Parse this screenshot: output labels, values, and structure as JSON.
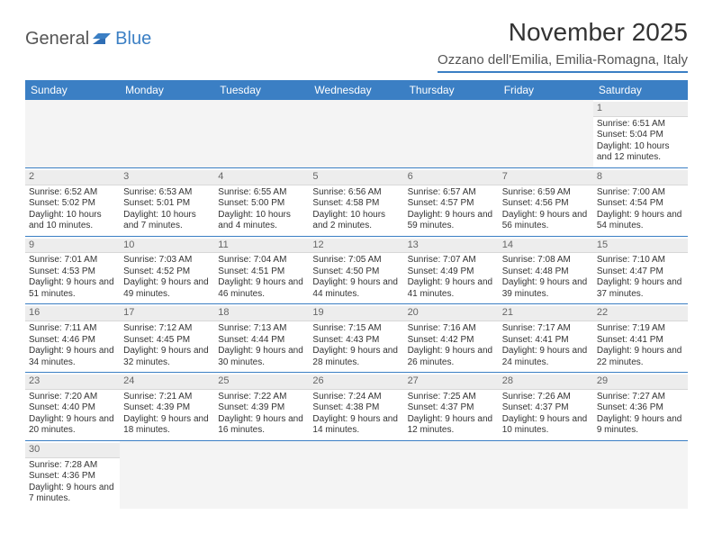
{
  "logo": {
    "general": "General",
    "blue": "Blue"
  },
  "title": "November 2025",
  "location": "Ozzano dell'Emilia, Emilia-Romagna, Italy",
  "colors": {
    "accent": "#3b7fc4",
    "headerText": "#ffffff",
    "dayNumBg": "#ededed",
    "text": "#333333"
  },
  "weekdays": [
    "Sunday",
    "Monday",
    "Tuesday",
    "Wednesday",
    "Thursday",
    "Friday",
    "Saturday"
  ],
  "weeks": [
    [
      null,
      null,
      null,
      null,
      null,
      null,
      {
        "n": "1",
        "sunrise": "Sunrise: 6:51 AM",
        "sunset": "Sunset: 5:04 PM",
        "daylight": "Daylight: 10 hours and 12 minutes."
      }
    ],
    [
      {
        "n": "2",
        "sunrise": "Sunrise: 6:52 AM",
        "sunset": "Sunset: 5:02 PM",
        "daylight": "Daylight: 10 hours and 10 minutes."
      },
      {
        "n": "3",
        "sunrise": "Sunrise: 6:53 AM",
        "sunset": "Sunset: 5:01 PM",
        "daylight": "Daylight: 10 hours and 7 minutes."
      },
      {
        "n": "4",
        "sunrise": "Sunrise: 6:55 AM",
        "sunset": "Sunset: 5:00 PM",
        "daylight": "Daylight: 10 hours and 4 minutes."
      },
      {
        "n": "5",
        "sunrise": "Sunrise: 6:56 AM",
        "sunset": "Sunset: 4:58 PM",
        "daylight": "Daylight: 10 hours and 2 minutes."
      },
      {
        "n": "6",
        "sunrise": "Sunrise: 6:57 AM",
        "sunset": "Sunset: 4:57 PM",
        "daylight": "Daylight: 9 hours and 59 minutes."
      },
      {
        "n": "7",
        "sunrise": "Sunrise: 6:59 AM",
        "sunset": "Sunset: 4:56 PM",
        "daylight": "Daylight: 9 hours and 56 minutes."
      },
      {
        "n": "8",
        "sunrise": "Sunrise: 7:00 AM",
        "sunset": "Sunset: 4:54 PM",
        "daylight": "Daylight: 9 hours and 54 minutes."
      }
    ],
    [
      {
        "n": "9",
        "sunrise": "Sunrise: 7:01 AM",
        "sunset": "Sunset: 4:53 PM",
        "daylight": "Daylight: 9 hours and 51 minutes."
      },
      {
        "n": "10",
        "sunrise": "Sunrise: 7:03 AM",
        "sunset": "Sunset: 4:52 PM",
        "daylight": "Daylight: 9 hours and 49 minutes."
      },
      {
        "n": "11",
        "sunrise": "Sunrise: 7:04 AM",
        "sunset": "Sunset: 4:51 PM",
        "daylight": "Daylight: 9 hours and 46 minutes."
      },
      {
        "n": "12",
        "sunrise": "Sunrise: 7:05 AM",
        "sunset": "Sunset: 4:50 PM",
        "daylight": "Daylight: 9 hours and 44 minutes."
      },
      {
        "n": "13",
        "sunrise": "Sunrise: 7:07 AM",
        "sunset": "Sunset: 4:49 PM",
        "daylight": "Daylight: 9 hours and 41 minutes."
      },
      {
        "n": "14",
        "sunrise": "Sunrise: 7:08 AM",
        "sunset": "Sunset: 4:48 PM",
        "daylight": "Daylight: 9 hours and 39 minutes."
      },
      {
        "n": "15",
        "sunrise": "Sunrise: 7:10 AM",
        "sunset": "Sunset: 4:47 PM",
        "daylight": "Daylight: 9 hours and 37 minutes."
      }
    ],
    [
      {
        "n": "16",
        "sunrise": "Sunrise: 7:11 AM",
        "sunset": "Sunset: 4:46 PM",
        "daylight": "Daylight: 9 hours and 34 minutes."
      },
      {
        "n": "17",
        "sunrise": "Sunrise: 7:12 AM",
        "sunset": "Sunset: 4:45 PM",
        "daylight": "Daylight: 9 hours and 32 minutes."
      },
      {
        "n": "18",
        "sunrise": "Sunrise: 7:13 AM",
        "sunset": "Sunset: 4:44 PM",
        "daylight": "Daylight: 9 hours and 30 minutes."
      },
      {
        "n": "19",
        "sunrise": "Sunrise: 7:15 AM",
        "sunset": "Sunset: 4:43 PM",
        "daylight": "Daylight: 9 hours and 28 minutes."
      },
      {
        "n": "20",
        "sunrise": "Sunrise: 7:16 AM",
        "sunset": "Sunset: 4:42 PM",
        "daylight": "Daylight: 9 hours and 26 minutes."
      },
      {
        "n": "21",
        "sunrise": "Sunrise: 7:17 AM",
        "sunset": "Sunset: 4:41 PM",
        "daylight": "Daylight: 9 hours and 24 minutes."
      },
      {
        "n": "22",
        "sunrise": "Sunrise: 7:19 AM",
        "sunset": "Sunset: 4:41 PM",
        "daylight": "Daylight: 9 hours and 22 minutes."
      }
    ],
    [
      {
        "n": "23",
        "sunrise": "Sunrise: 7:20 AM",
        "sunset": "Sunset: 4:40 PM",
        "daylight": "Daylight: 9 hours and 20 minutes."
      },
      {
        "n": "24",
        "sunrise": "Sunrise: 7:21 AM",
        "sunset": "Sunset: 4:39 PM",
        "daylight": "Daylight: 9 hours and 18 minutes."
      },
      {
        "n": "25",
        "sunrise": "Sunrise: 7:22 AM",
        "sunset": "Sunset: 4:39 PM",
        "daylight": "Daylight: 9 hours and 16 minutes."
      },
      {
        "n": "26",
        "sunrise": "Sunrise: 7:24 AM",
        "sunset": "Sunset: 4:38 PM",
        "daylight": "Daylight: 9 hours and 14 minutes."
      },
      {
        "n": "27",
        "sunrise": "Sunrise: 7:25 AM",
        "sunset": "Sunset: 4:37 PM",
        "daylight": "Daylight: 9 hours and 12 minutes."
      },
      {
        "n": "28",
        "sunrise": "Sunrise: 7:26 AM",
        "sunset": "Sunset: 4:37 PM",
        "daylight": "Daylight: 9 hours and 10 minutes."
      },
      {
        "n": "29",
        "sunrise": "Sunrise: 7:27 AM",
        "sunset": "Sunset: 4:36 PM",
        "daylight": "Daylight: 9 hours and 9 minutes."
      }
    ],
    [
      {
        "n": "30",
        "sunrise": "Sunrise: 7:28 AM",
        "sunset": "Sunset: 4:36 PM",
        "daylight": "Daylight: 9 hours and 7 minutes."
      },
      null,
      null,
      null,
      null,
      null,
      null
    ]
  ]
}
